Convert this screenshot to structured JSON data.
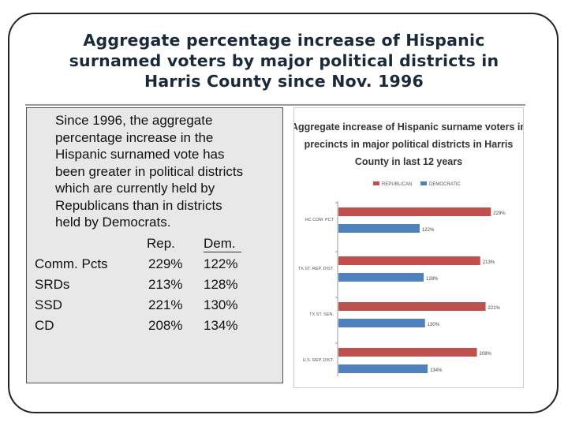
{
  "slide": {
    "title_lines": [
      "Aggregate percentage increase of Hispanic",
      "surnamed voters by major political districts in",
      "Harris County since Nov. 1996"
    ],
    "paragraph_lines": [
      "Since 1996, the aggregate",
      "percentage increase in the",
      "Hispanic surnamed vote has",
      "been greater in political districts",
      "which are currently held by",
      "Republicans than in districts",
      "held by Democrats."
    ],
    "table": {
      "headers": [
        "Rep.",
        "Dem."
      ],
      "rows": [
        {
          "label": "Comm. Pcts",
          "rep": "229%",
          "dem": "122%"
        },
        {
          "label": "SRDs",
          "rep": "213%",
          "dem": "128%"
        },
        {
          "label": "SSD",
          "rep": "221%",
          "dem": "130%"
        },
        {
          "label": "CD",
          "rep": "208%",
          "dem": "134%"
        }
      ]
    }
  },
  "chart_data": {
    "type": "bar",
    "orientation": "horizontal",
    "title_lines": [
      "Aggregate increase of Hispanic surname voters in",
      "precincts in major political districts in Harris",
      "County in last 12 years"
    ],
    "categories": [
      "HC COM. PCT",
      "TX ST. REP. DIST.",
      "TX ST. SEN.",
      "U.S. REP. DIST."
    ],
    "series": [
      {
        "name": "REPUBLICAN",
        "color": "#c0504d",
        "values": [
          229,
          213,
          221,
          208
        ],
        "labels": [
          "229%",
          "213%",
          "221%",
          "208%"
        ]
      },
      {
        "name": "DEMOCRATIC",
        "color": "#4f81bd",
        "values": [
          122,
          128,
          130,
          134
        ],
        "labels": [
          "122%",
          "128%",
          "130%",
          "134%"
        ]
      }
    ],
    "xlim": [
      0,
      250
    ],
    "legend_position": "top",
    "grid": false
  }
}
